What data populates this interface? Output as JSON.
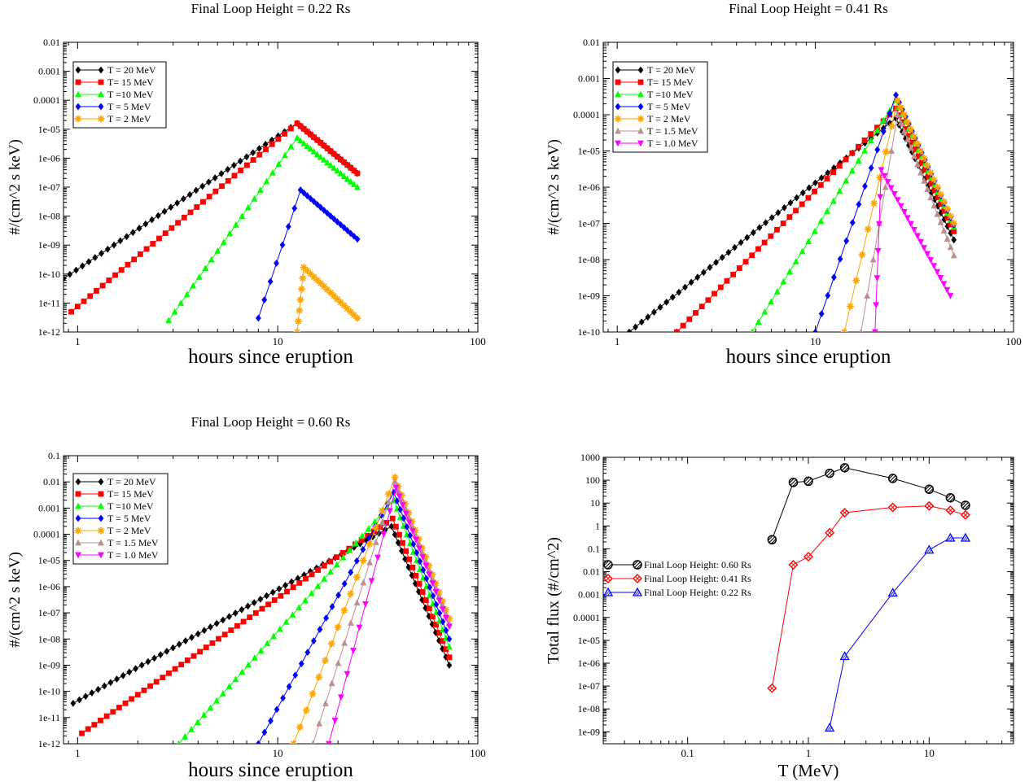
{
  "figure": "grid of four log-log plots",
  "chart_data": [
    {
      "type": "line",
      "title": "Final Loop Height = 0.22 Rs",
      "xlabel": "hours since eruption",
      "ylabel": "#/(cm^2 s keV)",
      "xscale": "log",
      "yscale": "log",
      "xlim": [
        0.85,
        100
      ],
      "ylim": [
        1e-12,
        0.01
      ],
      "xticks": [
        "1",
        "10",
        "100"
      ],
      "yticks": [
        "1e-12",
        "1e-11",
        "1e-10",
        "1e-09",
        "1e-08",
        "1e-07",
        "1e-06",
        "1e-05",
        "0.0001",
        "0.001",
        "0.01"
      ],
      "legend": "top-left",
      "series": [
        {
          "name": "T = 20 MeV",
          "color": "#000000",
          "marker": "diamond",
          "start": 0.85,
          "ystart": 7e-11,
          "peak": 12.5,
          "ypeak": 1.6e-05,
          "end": 25,
          "yend": 3e-07
        },
        {
          "name": "T= 15 MeV",
          "color": "#ff0000",
          "marker": "square",
          "start": 0.93,
          "ystart": 5e-12,
          "peak": 12.5,
          "ypeak": 1.6e-05,
          "end": 25,
          "yend": 3e-07
        },
        {
          "name": "T =10 MeV",
          "color": "#00ff00",
          "marker": "triangle-up",
          "start": 2.85,
          "ystart": 2.5e-12,
          "peak": 12.5,
          "ypeak": 5e-06,
          "end": 25,
          "yend": 1e-07
        },
        {
          "name": "T = 5 MeV",
          "color": "#0000ff",
          "marker": "diamond",
          "start": 8.0,
          "ystart": 3e-12,
          "peak": 13.0,
          "ypeak": 8e-08,
          "end": 25,
          "yend": 1.6e-09
        },
        {
          "name": "T = 2 MeV",
          "color": "#ffa500",
          "marker": "star",
          "start": 12.5,
          "ystart": 1e-12,
          "peak": 13.5,
          "ypeak": 1.7e-10,
          "end": 25,
          "yend": 3e-12
        }
      ]
    },
    {
      "type": "line",
      "title": "Final Loop Height = 0.41 Rs",
      "xlabel": "hours since eruption",
      "ylabel": "#/(cm^2 s keV)",
      "xscale": "log",
      "yscale": "log",
      "xlim": [
        0.85,
        100
      ],
      "ylim": [
        1e-10,
        0.01
      ],
      "xticks": [
        "1",
        "10",
        "100"
      ],
      "yticks": [
        "1e-10",
        "1e-09",
        "1e-08",
        "1e-07",
        "1e-06",
        "1e-05",
        "0.0001",
        "0.001",
        "0.01"
      ],
      "legend": "top-left",
      "series": [
        {
          "name": "T = 20 MeV",
          "color": "#000000",
          "marker": "diamond",
          "start": 1.15,
          "ystart": 1e-10,
          "peak": 25.5,
          "ypeak": 8e-05,
          "end": 50,
          "yend": 3.5e-08
        },
        {
          "name": "T= 15 MeV",
          "color": "#ff0000",
          "marker": "square",
          "start": 2.0,
          "ystart": 1e-10,
          "peak": 25.5,
          "ypeak": 0.00015,
          "end": 50,
          "yend": 6e-08
        },
        {
          "name": "T =10 MeV",
          "color": "#00ff00",
          "marker": "triangle-up",
          "start": 4.8,
          "ystart": 1e-10,
          "peak": 25.5,
          "ypeak": 0.00025,
          "end": 50,
          "yend": 8e-08
        },
        {
          "name": "T = 5 MeV",
          "color": "#0000ff",
          "marker": "diamond",
          "start": 10.0,
          "ystart": 1e-10,
          "peak": 25.5,
          "ypeak": 0.00035,
          "end": 50,
          "yend": 9e-08
        },
        {
          "name": "T = 2 MeV",
          "color": "#ffa500",
          "marker": "star",
          "start": 14.0,
          "ystart": 1e-10,
          "peak": 26.0,
          "ypeak": 0.00025,
          "end": 50,
          "yend": 1e-07
        },
        {
          "name": "T = 1.5 MeV",
          "color": "#bc8f8f",
          "marker": "triangle-up",
          "start": 17.0,
          "ystart": 1e-10,
          "peak": 26.0,
          "ypeak": 0.0001,
          "end": 50,
          "yend": 1.3e-08
        },
        {
          "name": "T = 1.0 MeV",
          "color": "#ff00ff",
          "marker": "triangle-down",
          "start": 20.0,
          "ystart": 1e-10,
          "peak": 21.5,
          "ypeak": 3e-06,
          "end": 48,
          "yend": 1e-09
        }
      ]
    },
    {
      "type": "line",
      "title": "Final Loop Height = 0.60 Rs",
      "xlabel": "hours since eruption",
      "ylabel": "#/(cm^2 s keV)",
      "xscale": "log",
      "yscale": "log",
      "xlim": [
        0.85,
        100
      ],
      "ylim": [
        1e-12,
        0.1
      ],
      "xticks": [
        "1",
        "10",
        "100"
      ],
      "yticks": [
        "1e-12",
        "1e-11",
        "1e-10",
        "1e-09",
        "1e-08",
        "1e-07",
        "1e-06",
        "1e-05",
        "0.0001",
        "0.001",
        "0.01",
        "0.1"
      ],
      "legend": "top-left",
      "series": [
        {
          "name": "T = 20 MeV",
          "color": "#000000",
          "marker": "diamond",
          "start": 0.95,
          "ystart": 3.5e-11,
          "peak": 37.0,
          "ypeak": 0.0002,
          "end": 72,
          "yend": 1e-09
        },
        {
          "name": "T= 15 MeV",
          "color": "#ff0000",
          "marker": "square",
          "start": 1.05,
          "ystart": 2.5e-12,
          "peak": 37.5,
          "ypeak": 0.0004,
          "end": 72,
          "yend": 2e-09
        },
        {
          "name": "T =10 MeV",
          "color": "#00ff00",
          "marker": "triangle-up",
          "start": 3.2,
          "ystart": 1e-12,
          "peak": 38.0,
          "ypeak": 0.002,
          "end": 72,
          "yend": 5e-09
        },
        {
          "name": "T = 5 MeV",
          "color": "#0000ff",
          "marker": "diamond",
          "start": 8.0,
          "ystart": 1e-12,
          "peak": 38.0,
          "ypeak": 0.004,
          "end": 72,
          "yend": 1e-08
        },
        {
          "name": "T = 2 MeV",
          "color": "#ffa500",
          "marker": "star",
          "start": 12.0,
          "ystart": 1e-12,
          "peak": 38.5,
          "ypeak": 0.015,
          "end": 72,
          "yend": 6e-08
        },
        {
          "name": "T = 1.5 MeV",
          "color": "#bc8f8f",
          "marker": "triangle-up",
          "start": 15.0,
          "ystart": 1e-12,
          "peak": 38.5,
          "ypeak": 0.01,
          "end": 72,
          "yend": 4e-08
        },
        {
          "name": "T = 1.0 MeV",
          "color": "#ff00ff",
          "marker": "triangle-down",
          "start": 18.0,
          "ystart": 1e-12,
          "peak": 39.0,
          "ypeak": 0.006,
          "end": 72,
          "yend": 3e-08
        }
      ]
    },
    {
      "type": "line",
      "title": "",
      "xlabel": "T (MeV)",
      "ylabel": "Total flux (#/cm^2)",
      "xscale": "log",
      "yscale": "log",
      "xlim": [
        0.02,
        50
      ],
      "ylim": [
        3e-10,
        1000
      ],
      "xticks": [
        "0.1",
        "1",
        "10"
      ],
      "yticks": [
        "1e-09",
        "1e-08",
        "1e-07",
        "1e-06",
        "1e-05",
        "0.0001",
        "0.001",
        "0.01",
        "0.1",
        "1",
        "10",
        "100",
        "1000"
      ],
      "legend": "center-left",
      "series": [
        {
          "name": "Final Loop Height: 0.60 Rs",
          "color": "#000000",
          "marker": "hatched-circle",
          "x": [
            0.5,
            0.75,
            1.0,
            1.5,
            2.0,
            5.0,
            10.0,
            15.0,
            20.0
          ],
          "y": [
            0.25,
            80,
            90,
            200,
            350,
            120,
            40,
            17,
            8
          ]
        },
        {
          "name": "Final Loop Height: 0.41 Rs",
          "color": "#ff0000",
          "marker": "crossed-diamond",
          "x": [
            0.5,
            0.75,
            1.0,
            1.5,
            2.0,
            5.0,
            10.0,
            15.0,
            20.0
          ],
          "y": [
            8e-08,
            0.02,
            0.045,
            0.5,
            3.8,
            6.5,
            7.5,
            4.8,
            3.0
          ]
        },
        {
          "name": "Final Loop Height: 0.22 Rs",
          "color": "#0000ff",
          "marker": "hatched-triangle",
          "x": [
            1.5,
            2.0,
            5.0,
            10.0,
            15.0,
            20.0
          ],
          "y": [
            1.5e-09,
            2e-06,
            0.0012,
            0.09,
            0.3,
            0.3
          ]
        }
      ]
    }
  ]
}
